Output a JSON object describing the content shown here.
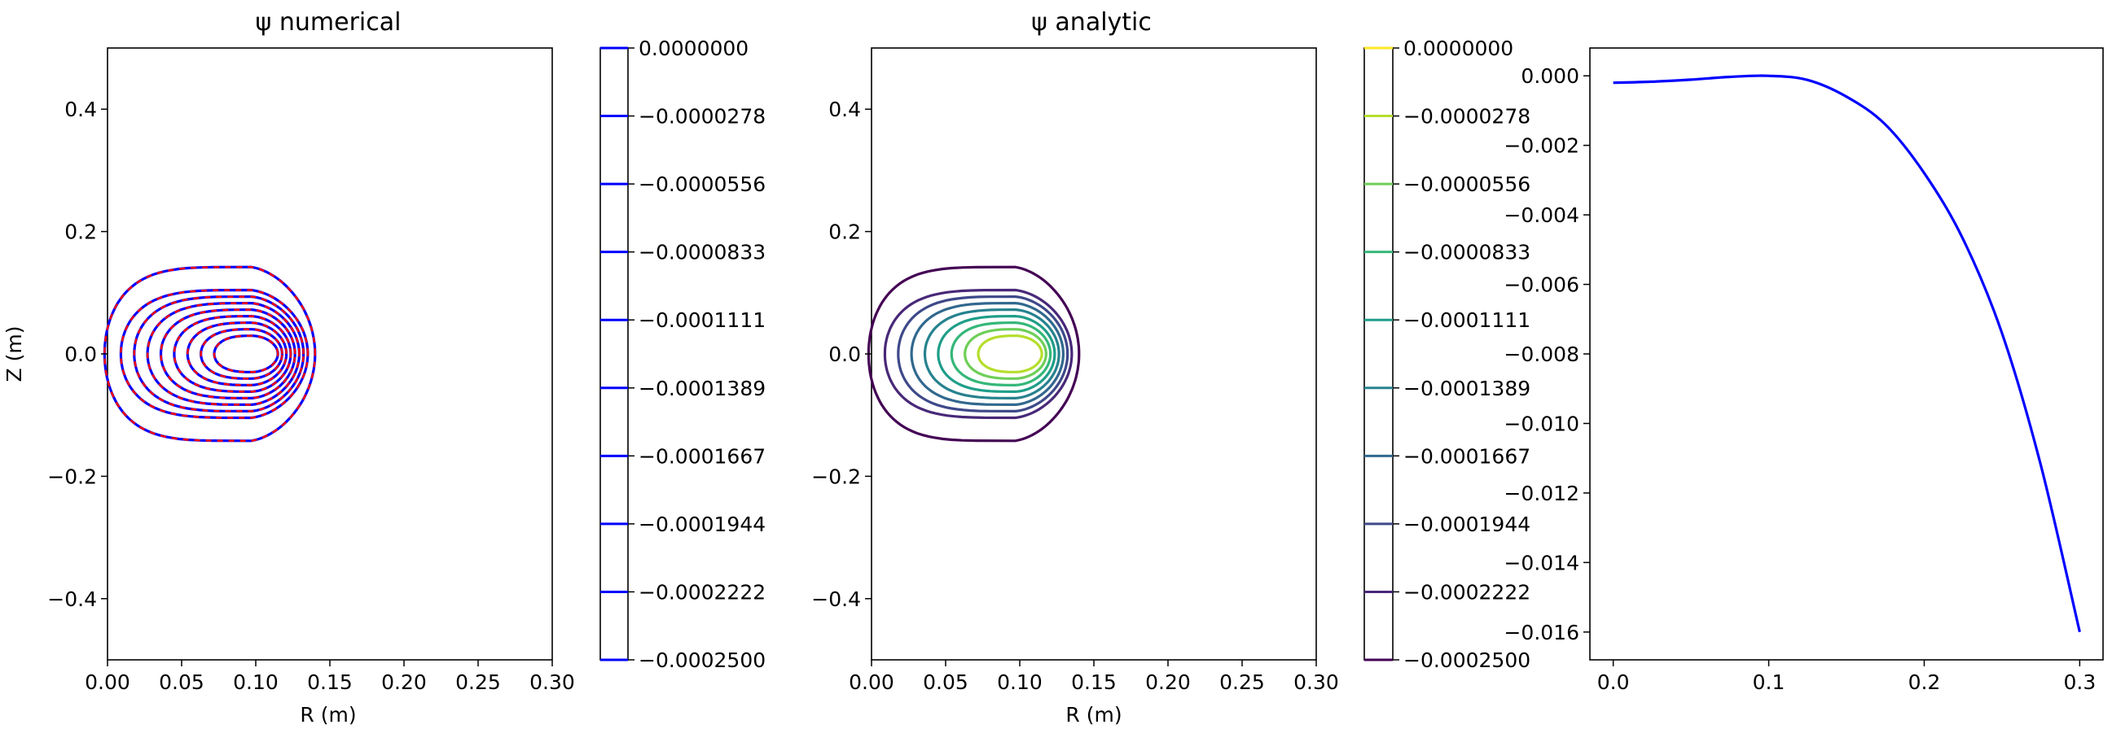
{
  "chart_data": [
    {
      "type": "contour",
      "title": "ψ  numerical",
      "xlabel": "R (m)",
      "ylabel": "Z (m)",
      "xlim": [
        0.0,
        0.3
      ],
      "ylim": [
        -0.5,
        0.5
      ],
      "xticks": [
        "0.00",
        "0.05",
        "0.10",
        "0.15",
        "0.20",
        "0.25",
        "0.30"
      ],
      "yticks": [
        "0.4",
        "0.2",
        "0.0",
        "−0.2",
        "−0.4"
      ],
      "colors": {
        "numerical": "#0000ff",
        "analytic_overlay": "#ff0000"
      },
      "overlay": "dashed",
      "levels": [
        -0.00025,
        -0.000222,
        -0.000194,
        -0.000167,
        -0.000139,
        -0.000111,
        -8.33e-05,
        -5.56e-05,
        -2.78e-05,
        0.0
      ],
      "colorbar": {
        "labels": [
          "0.0000000",
          "−0.0000278",
          "−0.0000556",
          "−0.0000833",
          "−0.0001111",
          "−0.0001389",
          "−0.0001667",
          "−0.0001944",
          "−0.0002222",
          "−0.0002500"
        ],
        "colors": [
          "#0000ff",
          "#0000ff",
          "#0000ff",
          "#0000ff",
          "#0000ff",
          "#0000ff",
          "#0000ff",
          "#0000ff",
          "#0000ff",
          "#0000ff"
        ]
      }
    },
    {
      "type": "contour",
      "title": "ψ  analytic",
      "xlabel": "R (m)",
      "ylabel": "",
      "xlim": [
        0.0,
        0.3
      ],
      "ylim": [
        -0.5,
        0.5
      ],
      "xticks": [
        "0.00",
        "0.05",
        "0.10",
        "0.15",
        "0.20",
        "0.25",
        "0.30"
      ],
      "yticks": [
        "0.4",
        "0.2",
        "0.0",
        "−0.2",
        "−0.4"
      ],
      "colormap": "viridis",
      "levels": [
        -0.00025,
        -0.000222,
        -0.000194,
        -0.000167,
        -0.000139,
        -0.000111,
        -8.33e-05,
        -5.56e-05,
        -2.78e-05,
        0.0
      ],
      "colorbar": {
        "labels": [
          "0.0000000",
          "−0.0000278",
          "−0.0000556",
          "−0.0000833",
          "−0.0001111",
          "−0.0001389",
          "−0.0001667",
          "−0.0001944",
          "−0.0002222",
          "−0.0002500"
        ],
        "colors": [
          "#fde725",
          "#b5de2b",
          "#6ece58",
          "#35b779",
          "#1f9e89",
          "#26828e",
          "#31688e",
          "#3e4989",
          "#482878",
          "#440154"
        ]
      }
    },
    {
      "type": "line",
      "title": "",
      "xlabel": "",
      "ylabel": "",
      "xlim": [
        -0.015,
        0.315
      ],
      "ylim": [
        -0.0168,
        0.0008
      ],
      "xticks": [
        "0.0",
        "0.1",
        "0.2",
        "0.3"
      ],
      "yticks": [
        "0.000",
        "−0.002",
        "−0.004",
        "−0.006",
        "−0.008",
        "−0.010",
        "−0.012",
        "−0.014",
        "−0.016"
      ],
      "series": [
        {
          "color": "#0000ff",
          "x": [
            0.0,
            0.025,
            0.05,
            0.075,
            0.1,
            0.125,
            0.15,
            0.175,
            0.2,
            0.225,
            0.25,
            0.275,
            0.3
          ],
          "y": [
            -0.0002,
            -0.00017,
            -0.00011,
            -3e-05,
            0.0,
            -0.00012,
            -0.0006,
            -0.0014,
            -0.0028,
            -0.0047,
            -0.0074,
            -0.0112,
            -0.016
          ]
        }
      ]
    }
  ]
}
